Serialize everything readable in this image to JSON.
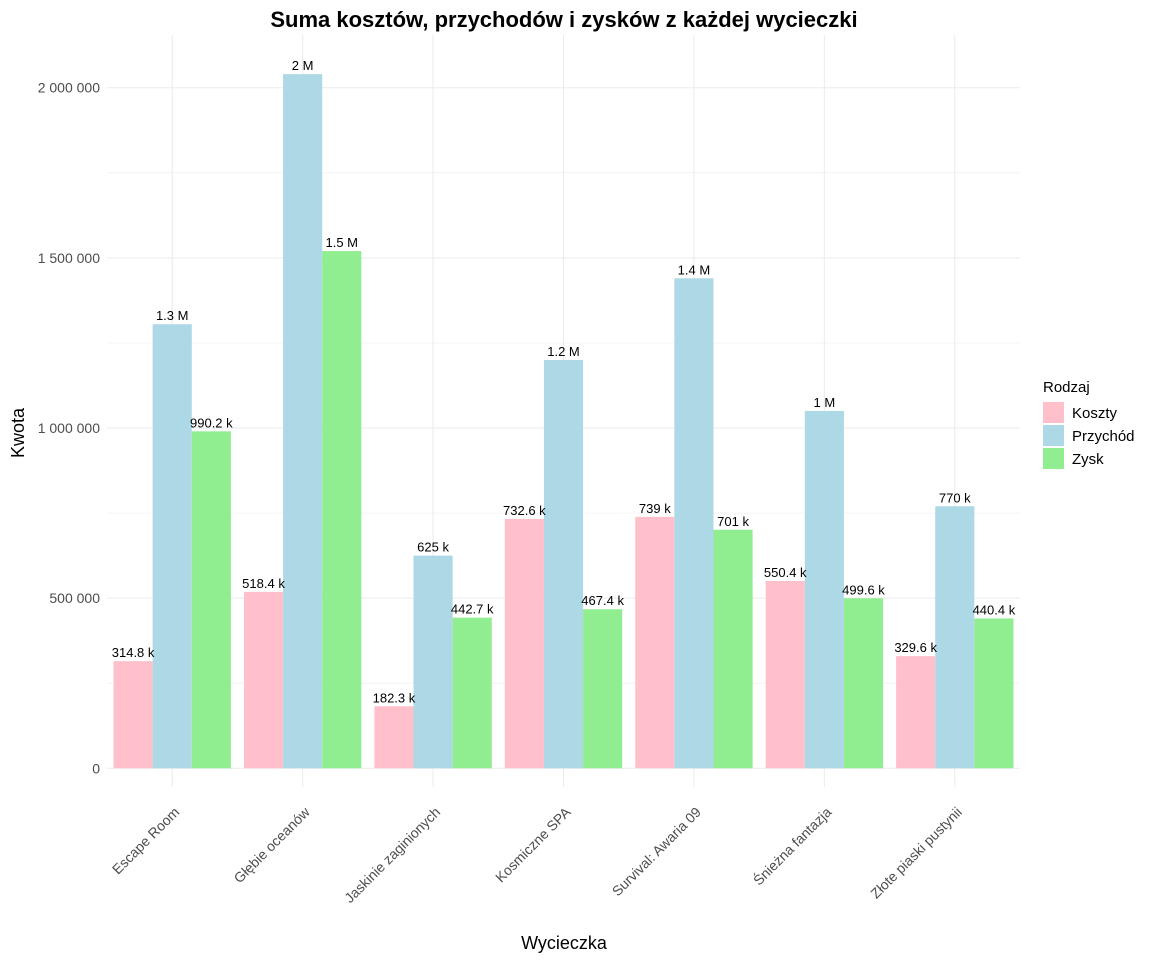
{
  "chart_data": {
    "type": "bar",
    "title": "Suma kosztów, przychodów i zysków z każdej wycieczki",
    "xlabel": "Wycieczka",
    "ylabel": "Kwota",
    "categories": [
      "Escape Room",
      "Głębie oceanów",
      "Jaskinie zaginionych",
      "Kosmiczne SPA",
      "Survival: Awaria 09",
      "Śnieżna fantazja",
      "Złote piaski pustynii"
    ],
    "series": [
      {
        "name": "Koszty",
        "color": "#FFC0CB",
        "values": [
          314800,
          518400,
          182300,
          732600,
          739000,
          550400,
          329600
        ],
        "labels": [
          "314.8 k",
          "518.4 k",
          "182.3 k",
          "732.6 k",
          "739 k",
          "550.4 k",
          "329.6 k"
        ]
      },
      {
        "name": "Przychód",
        "color": "#ADD8E6",
        "values": [
          1305000,
          2040000,
          625000,
          1200000,
          1440000,
          1050000,
          770000
        ],
        "labels": [
          "1.3 M",
          "2 M",
          "625 k",
          "1.2 M",
          "1.4 M",
          "1 M",
          "770 k"
        ]
      },
      {
        "name": "Zysk",
        "color": "#90EE90",
        "values": [
          990200,
          1520000,
          442700,
          467400,
          701000,
          499600,
          440400
        ],
        "labels": [
          "990.2 k",
          "1.5 M",
          "442.7 k",
          "467.4 k",
          "701 k",
          "499.6 k",
          "440.4 k"
        ]
      }
    ],
    "ylim": [
      -55000,
      2155000
    ],
    "yticks": [
      0,
      500000,
      1000000,
      1500000,
      2000000
    ],
    "ytick_labels": [
      "0",
      "500 000",
      "1 000 000",
      "1 500 000",
      "2 000 000"
    ],
    "grid": true,
    "legend": {
      "title": "Rodzaj",
      "placement": "right"
    }
  }
}
